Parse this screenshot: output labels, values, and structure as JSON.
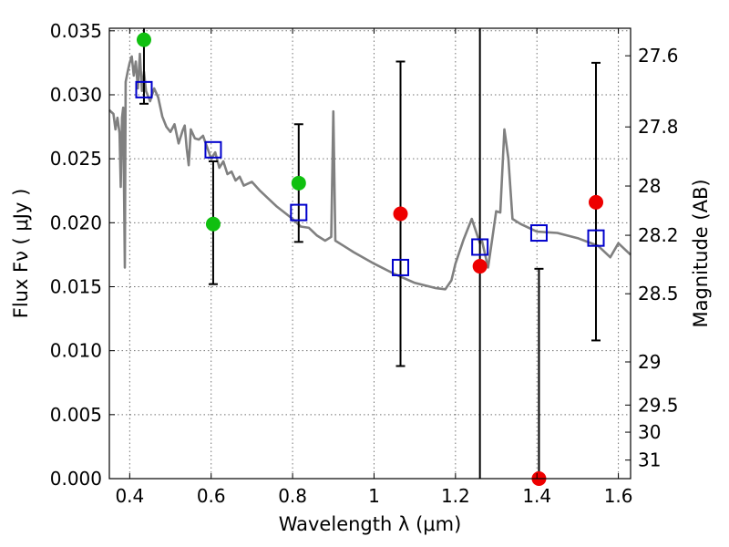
{
  "chart_data": {
    "type": "scatter",
    "title": "",
    "xlabel": "Wavelength  λ (μm)",
    "ylabel": "Flux  Fν  ( μJy )",
    "y2label": "Magnitude (AB)",
    "xlim": [
      0.35,
      1.63
    ],
    "ylim": [
      0.0,
      0.0352
    ],
    "grid": true,
    "x_ticks": [
      0.4,
      0.6,
      0.8,
      1.0,
      1.2,
      1.4,
      1.6
    ],
    "x_tick_labels": [
      "0.4",
      "0.6",
      "0.8",
      "1",
      "1.2",
      "1.4",
      "1.6"
    ],
    "y_ticks": [
      0.0,
      0.005,
      0.01,
      0.015,
      0.02,
      0.025,
      0.03,
      0.035
    ],
    "y_tick_labels": [
      "0.000",
      "0.005",
      "0.010",
      "0.015",
      "0.020",
      "0.025",
      "0.030",
      "0.035"
    ],
    "y2_ticks": [
      {
        "label": "27.6",
        "flux": 0.03305
      },
      {
        "label": "27.8",
        "flux": 0.02749
      },
      {
        "label": "28",
        "flux": 0.02287
      },
      {
        "label": "28.2",
        "flux": 0.01902
      },
      {
        "label": "28.5",
        "flux": 0.01445
      },
      {
        "label": "29",
        "flux": 0.00912
      },
      {
        "label": "29.5",
        "flux": 0.00575
      },
      {
        "label": "30",
        "flux": 0.00363
      },
      {
        "label": "31",
        "flux": 0.00145
      }
    ],
    "colors": {
      "model": "#808080",
      "observed_detected": "#10c010",
      "observed_nondetected": "#ee0000",
      "model_photometry": "#0000cc",
      "errorbar": "#000000"
    },
    "series": [
      {
        "name": "model_spectrum",
        "kind": "line",
        "x": [
          0.35,
          0.36,
          0.365,
          0.37,
          0.375,
          0.378,
          0.381,
          0.384,
          0.388,
          0.39,
          0.395,
          0.4,
          0.405,
          0.41,
          0.415,
          0.42,
          0.425,
          0.43,
          0.435,
          0.44,
          0.45,
          0.46,
          0.47,
          0.48,
          0.49,
          0.5,
          0.51,
          0.52,
          0.53,
          0.535,
          0.54,
          0.545,
          0.55,
          0.56,
          0.57,
          0.58,
          0.59,
          0.6,
          0.61,
          0.62,
          0.63,
          0.64,
          0.65,
          0.66,
          0.67,
          0.68,
          0.7,
          0.72,
          0.74,
          0.76,
          0.78,
          0.8,
          0.82,
          0.84,
          0.86,
          0.88,
          0.895,
          0.9,
          0.905,
          0.92,
          0.95,
          1.0,
          1.05,
          1.1,
          1.15,
          1.175,
          1.19,
          1.2,
          1.22,
          1.24,
          1.26,
          1.265,
          1.28,
          1.29,
          1.3,
          1.31,
          1.32,
          1.33,
          1.34,
          1.36,
          1.4,
          1.45,
          1.5,
          1.55,
          1.58,
          1.6,
          1.63
        ],
        "y": [
          0.0288,
          0.0285,
          0.0273,
          0.0282,
          0.027,
          0.0228,
          0.0282,
          0.029,
          0.0165,
          0.031,
          0.0318,
          0.0325,
          0.033,
          0.0315,
          0.0326,
          0.0305,
          0.0332,
          0.0303,
          0.0318,
          0.0303,
          0.0295,
          0.0305,
          0.0298,
          0.0283,
          0.0275,
          0.0271,
          0.0277,
          0.0262,
          0.0272,
          0.0276,
          0.0258,
          0.0245,
          0.0273,
          0.0266,
          0.0265,
          0.0268,
          0.0259,
          0.025,
          0.0255,
          0.0243,
          0.0248,
          0.0238,
          0.024,
          0.0233,
          0.0236,
          0.0229,
          0.0232,
          0.0225,
          0.0219,
          0.0213,
          0.0208,
          0.0203,
          0.0197,
          0.0196,
          0.019,
          0.0186,
          0.0189,
          0.0287,
          0.0186,
          0.0183,
          0.0177,
          0.0168,
          0.016,
          0.0153,
          0.0149,
          0.0148,
          0.0155,
          0.0168,
          0.0187,
          0.0203,
          0.0184,
          0.0186,
          0.0165,
          0.0187,
          0.0209,
          0.0208,
          0.0273,
          0.025,
          0.0203,
          0.0199,
          0.0193,
          0.0192,
          0.0188,
          0.0182,
          0.0173,
          0.0184,
          0.0175
        ]
      },
      {
        "name": "observed_detected",
        "kind": "points",
        "x": [
          0.435,
          0.605,
          0.815
        ],
        "y": [
          0.0343,
          0.0199,
          0.0231
        ]
      },
      {
        "name": "observed_nondetected",
        "kind": "points",
        "x": [
          1.065,
          1.26,
          1.405,
          1.545
        ],
        "y": [
          0.0207,
          0.0166,
          0.0,
          0.0216
        ]
      },
      {
        "name": "model_photometry",
        "kind": "squares",
        "x": [
          0.435,
          0.605,
          0.815,
          1.065,
          1.26,
          1.405,
          1.545
        ],
        "y": [
          0.0304,
          0.0257,
          0.0208,
          0.0165,
          0.0181,
          0.0192,
          0.0188
        ]
      },
      {
        "name": "errorbars",
        "kind": "errorbar",
        "x": [
          0.435,
          0.605,
          0.815,
          1.065,
          1.26,
          1.405,
          1.545
        ],
        "low": [
          0.0293,
          0.0152,
          0.0185,
          0.0088,
          0.0,
          0.0,
          0.0108
        ],
        "high": [
          0.0352,
          0.0248,
          0.0277,
          0.0326,
          0.0352,
          0.0164,
          0.0325
        ]
      }
    ]
  }
}
